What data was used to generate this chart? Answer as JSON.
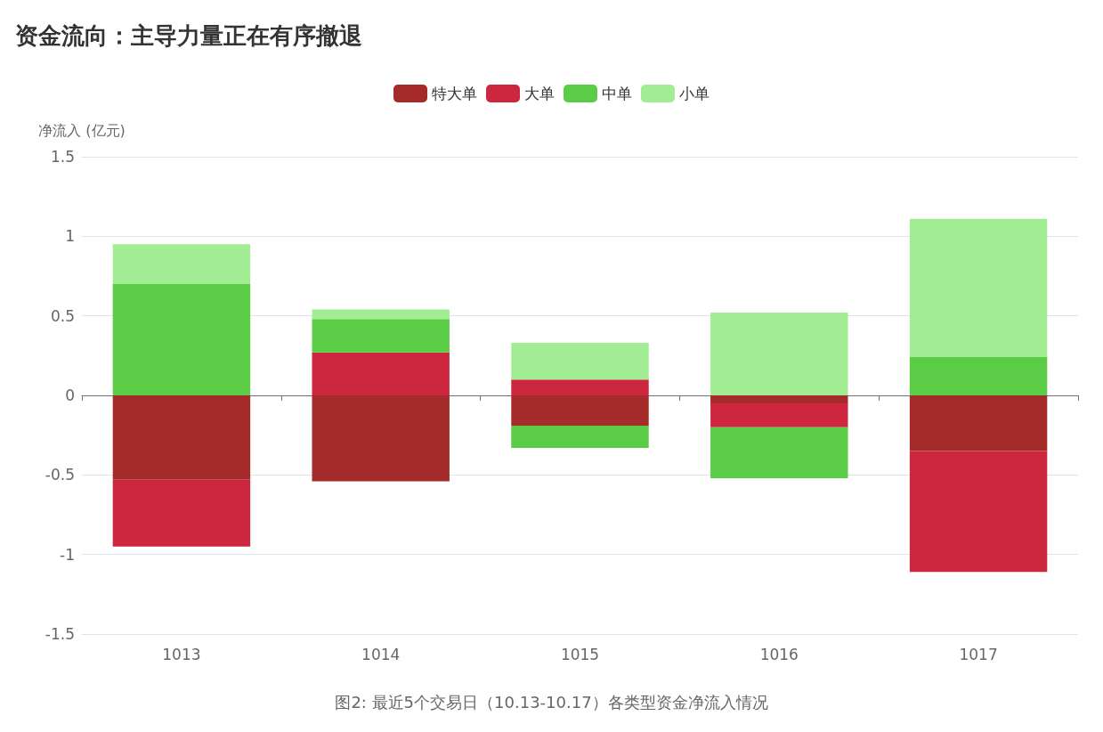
{
  "chart_data": {
    "type": "bar",
    "title": "资金流向：主导力量正在有序撤退",
    "ylabel": "净流入 (亿元)",
    "annotations": [
      "图2: 最近5个交易日（10.13-10.17）各类型资金净流入情况"
    ],
    "categories": [
      "1013",
      "1014",
      "1015",
      "1016",
      "1017"
    ],
    "series": [
      {
        "name": "特大单",
        "color": "#a52a2a",
        "values": [
          -0.53,
          -0.54,
          -0.19,
          -0.05,
          -0.35
        ]
      },
      {
        "name": "大单",
        "color": "#cd2740",
        "values": [
          -0.42,
          0.27,
          0.1,
          -0.15,
          -0.76
        ]
      },
      {
        "name": "中单",
        "color": "#5bcc45",
        "values": [
          0.7,
          0.21,
          -0.14,
          -0.32,
          0.24
        ]
      },
      {
        "name": "小单",
        "color": "#a2ec94",
        "values": [
          0.25,
          0.06,
          0.23,
          0.52,
          0.87
        ]
      }
    ],
    "stacked": true,
    "ylim": [
      -1.5,
      1.5
    ],
    "yticks": [
      -1.5,
      -1,
      -0.5,
      0,
      0.5,
      1,
      1.5
    ],
    "grid": "y",
    "legend": "top"
  }
}
